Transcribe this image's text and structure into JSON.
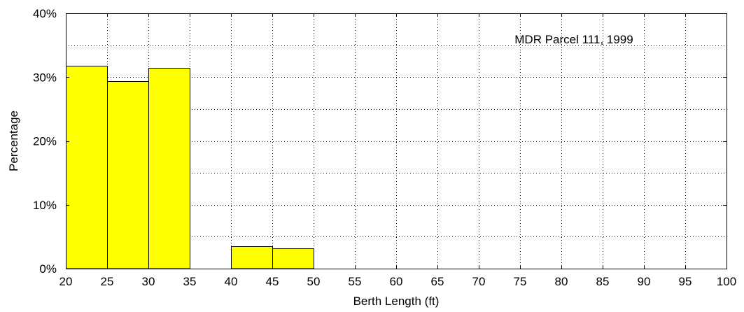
{
  "chart_data": {
    "type": "bar",
    "title": "",
    "annotation": "MDR Parcel 111, 1999",
    "xlabel": "Berth Length (ft)",
    "ylabel": "Percentage",
    "xlim": [
      20,
      100
    ],
    "ylim": [
      0,
      40
    ],
    "x_ticks": [
      20,
      25,
      30,
      35,
      40,
      45,
      50,
      55,
      60,
      65,
      70,
      75,
      80,
      85,
      90,
      95,
      100
    ],
    "x_tick_labels": [
      "20",
      "25",
      "30",
      "35",
      "40",
      "45",
      "50",
      "55",
      "60",
      "65",
      "70",
      "75",
      "80",
      "85",
      "90",
      "95",
      "100"
    ],
    "y_ticks": [
      0,
      10,
      20,
      30,
      40
    ],
    "y_tick_labels": [
      "0%",
      "10%",
      "20%",
      "30%",
      "40%"
    ],
    "grid": true,
    "bins": [
      {
        "x0": 20,
        "x1": 25,
        "value": 31.8
      },
      {
        "x0": 25,
        "x1": 30,
        "value": 29.4
      },
      {
        "x0": 30,
        "x1": 35,
        "value": 31.4
      },
      {
        "x0": 35,
        "x1": 40,
        "value": 0
      },
      {
        "x0": 40,
        "x1": 45,
        "value": 3.5
      },
      {
        "x0": 45,
        "x1": 50,
        "value": 3.2
      }
    ],
    "bar_color": "#ffff00",
    "bar_edge_color": "#000000",
    "grid_color": "#000000"
  }
}
